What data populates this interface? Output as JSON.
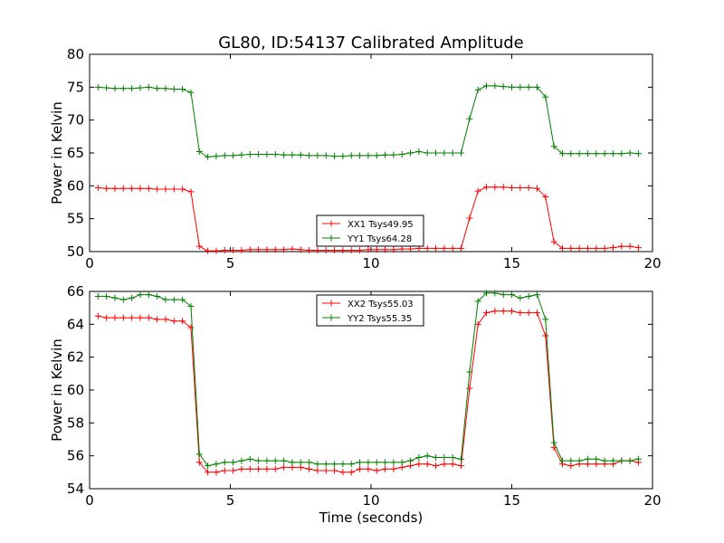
{
  "figure": {
    "title": "GL80, ID:54137 Calibrated Amplitude",
    "xlabel": "Time (seconds)"
  },
  "chart_data": [
    {
      "type": "line",
      "ylabel": "Power in Kelvin",
      "xlim": [
        0,
        20
      ],
      "ylim": [
        50,
        80
      ],
      "xticks": [
        "0",
        "5",
        "10",
        "15",
        "20"
      ],
      "yticks": [
        "50",
        "55",
        "60",
        "65",
        "70",
        "75",
        "80"
      ],
      "grid": false,
      "legend_position": "lower-center",
      "x": [
        0.3,
        0.6,
        0.9,
        1.2,
        1.5,
        1.8,
        2.1,
        2.4,
        2.7,
        3.0,
        3.3,
        3.6,
        3.9,
        4.2,
        4.5,
        4.8,
        5.1,
        5.4,
        5.7,
        6.0,
        6.3,
        6.6,
        6.9,
        7.2,
        7.5,
        7.8,
        8.1,
        8.4,
        8.7,
        9.0,
        9.3,
        9.6,
        9.9,
        10.2,
        10.5,
        10.8,
        11.1,
        11.4,
        11.7,
        12.0,
        12.3,
        12.6,
        12.9,
        13.2,
        13.5,
        13.8,
        14.1,
        14.4,
        14.7,
        15.0,
        15.3,
        15.6,
        15.9,
        16.2,
        16.5,
        16.8,
        17.1,
        17.4,
        17.7,
        18.0,
        18.3,
        18.6,
        18.9,
        19.2,
        19.5
      ],
      "series": [
        {
          "name": "XX1 Tsys49.95",
          "color": "#ff0000",
          "values": [
            59.7,
            59.6,
            59.6,
            59.6,
            59.6,
            59.6,
            59.6,
            59.5,
            59.5,
            59.5,
            59.5,
            59.1,
            50.8,
            50.1,
            50.1,
            50.2,
            50.2,
            50.2,
            50.3,
            50.3,
            50.3,
            50.3,
            50.3,
            50.4,
            50.3,
            50.2,
            50.2,
            50.2,
            50.2,
            50.2,
            50.2,
            50.2,
            50.3,
            50.3,
            50.3,
            50.3,
            50.4,
            50.4,
            50.5,
            50.5,
            50.5,
            50.5,
            50.5,
            50.5,
            55.1,
            59.2,
            59.8,
            59.8,
            59.8,
            59.7,
            59.7,
            59.7,
            59.6,
            58.3,
            51.5,
            50.5,
            50.5,
            50.5,
            50.5,
            50.5,
            50.5,
            50.6,
            50.8,
            50.8,
            50.6
          ]
        },
        {
          "name": "YY1 Tsys64.28",
          "color": "#008000",
          "values": [
            75.0,
            74.9,
            74.8,
            74.8,
            74.8,
            74.9,
            75.0,
            74.8,
            74.8,
            74.7,
            74.7,
            74.2,
            65.2,
            64.4,
            64.5,
            64.6,
            64.6,
            64.7,
            64.8,
            64.8,
            64.8,
            64.8,
            64.7,
            64.7,
            64.7,
            64.6,
            64.6,
            64.6,
            64.5,
            64.5,
            64.6,
            64.6,
            64.6,
            64.6,
            64.7,
            64.7,
            64.8,
            65.0,
            65.2,
            65.0,
            65.0,
            65.0,
            65.0,
            65.0,
            70.2,
            74.6,
            75.2,
            75.2,
            75.1,
            75.0,
            75.0,
            75.0,
            75.0,
            73.5,
            66.0,
            64.9,
            64.9,
            64.9,
            64.9,
            64.9,
            64.9,
            64.9,
            64.9,
            65.0,
            64.9
          ]
        }
      ]
    },
    {
      "type": "line",
      "ylabel": "Power in Kelvin",
      "xlim": [
        0,
        20
      ],
      "ylim": [
        54,
        66
      ],
      "xticks": [
        "0",
        "5",
        "10",
        "15",
        "20"
      ],
      "yticks": [
        "54",
        "56",
        "58",
        "60",
        "62",
        "64",
        "66"
      ],
      "grid": false,
      "legend_position": "top-center",
      "x": [
        0.3,
        0.6,
        0.9,
        1.2,
        1.5,
        1.8,
        2.1,
        2.4,
        2.7,
        3.0,
        3.3,
        3.6,
        3.9,
        4.2,
        4.5,
        4.8,
        5.1,
        5.4,
        5.7,
        6.0,
        6.3,
        6.6,
        6.9,
        7.2,
        7.5,
        7.8,
        8.1,
        8.4,
        8.7,
        9.0,
        9.3,
        9.6,
        9.9,
        10.2,
        10.5,
        10.8,
        11.1,
        11.4,
        11.7,
        12.0,
        12.3,
        12.6,
        12.9,
        13.2,
        13.5,
        13.8,
        14.1,
        14.4,
        14.7,
        15.0,
        15.3,
        15.6,
        15.9,
        16.2,
        16.5,
        16.8,
        17.1,
        17.4,
        17.7,
        18.0,
        18.3,
        18.6,
        18.9,
        19.2,
        19.5
      ],
      "series": [
        {
          "name": "XX2 Tsys55.03",
          "color": "#ff0000",
          "values": [
            64.5,
            64.4,
            64.4,
            64.4,
            64.4,
            64.4,
            64.4,
            64.3,
            64.3,
            64.2,
            64.2,
            63.8,
            55.6,
            55.0,
            55.0,
            55.1,
            55.1,
            55.2,
            55.2,
            55.2,
            55.2,
            55.2,
            55.3,
            55.3,
            55.3,
            55.2,
            55.1,
            55.1,
            55.1,
            55.0,
            55.0,
            55.2,
            55.2,
            55.1,
            55.2,
            55.2,
            55.3,
            55.4,
            55.5,
            55.5,
            55.4,
            55.5,
            55.5,
            55.4,
            60.1,
            64.0,
            64.7,
            64.8,
            64.8,
            64.8,
            64.7,
            64.7,
            64.7,
            63.3,
            56.5,
            55.5,
            55.4,
            55.5,
            55.5,
            55.5,
            55.5,
            55.5,
            55.7,
            55.7,
            55.6
          ]
        },
        {
          "name": "YY2 Tsys55.35",
          "color": "#008000",
          "values": [
            65.7,
            65.7,
            65.6,
            65.5,
            65.6,
            65.8,
            65.8,
            65.7,
            65.5,
            65.5,
            65.5,
            65.1,
            56.1,
            55.4,
            55.5,
            55.6,
            55.6,
            55.7,
            55.8,
            55.7,
            55.7,
            55.7,
            55.7,
            55.6,
            55.6,
            55.6,
            55.5,
            55.5,
            55.5,
            55.5,
            55.5,
            55.6,
            55.6,
            55.6,
            55.6,
            55.6,
            55.6,
            55.7,
            55.9,
            56.0,
            55.9,
            55.9,
            55.9,
            55.8,
            61.1,
            65.4,
            65.9,
            65.9,
            65.8,
            65.8,
            65.6,
            65.7,
            65.8,
            64.3,
            56.8,
            55.7,
            55.7,
            55.7,
            55.8,
            55.8,
            55.7,
            55.7,
            55.7,
            55.7,
            55.8
          ]
        }
      ]
    }
  ]
}
